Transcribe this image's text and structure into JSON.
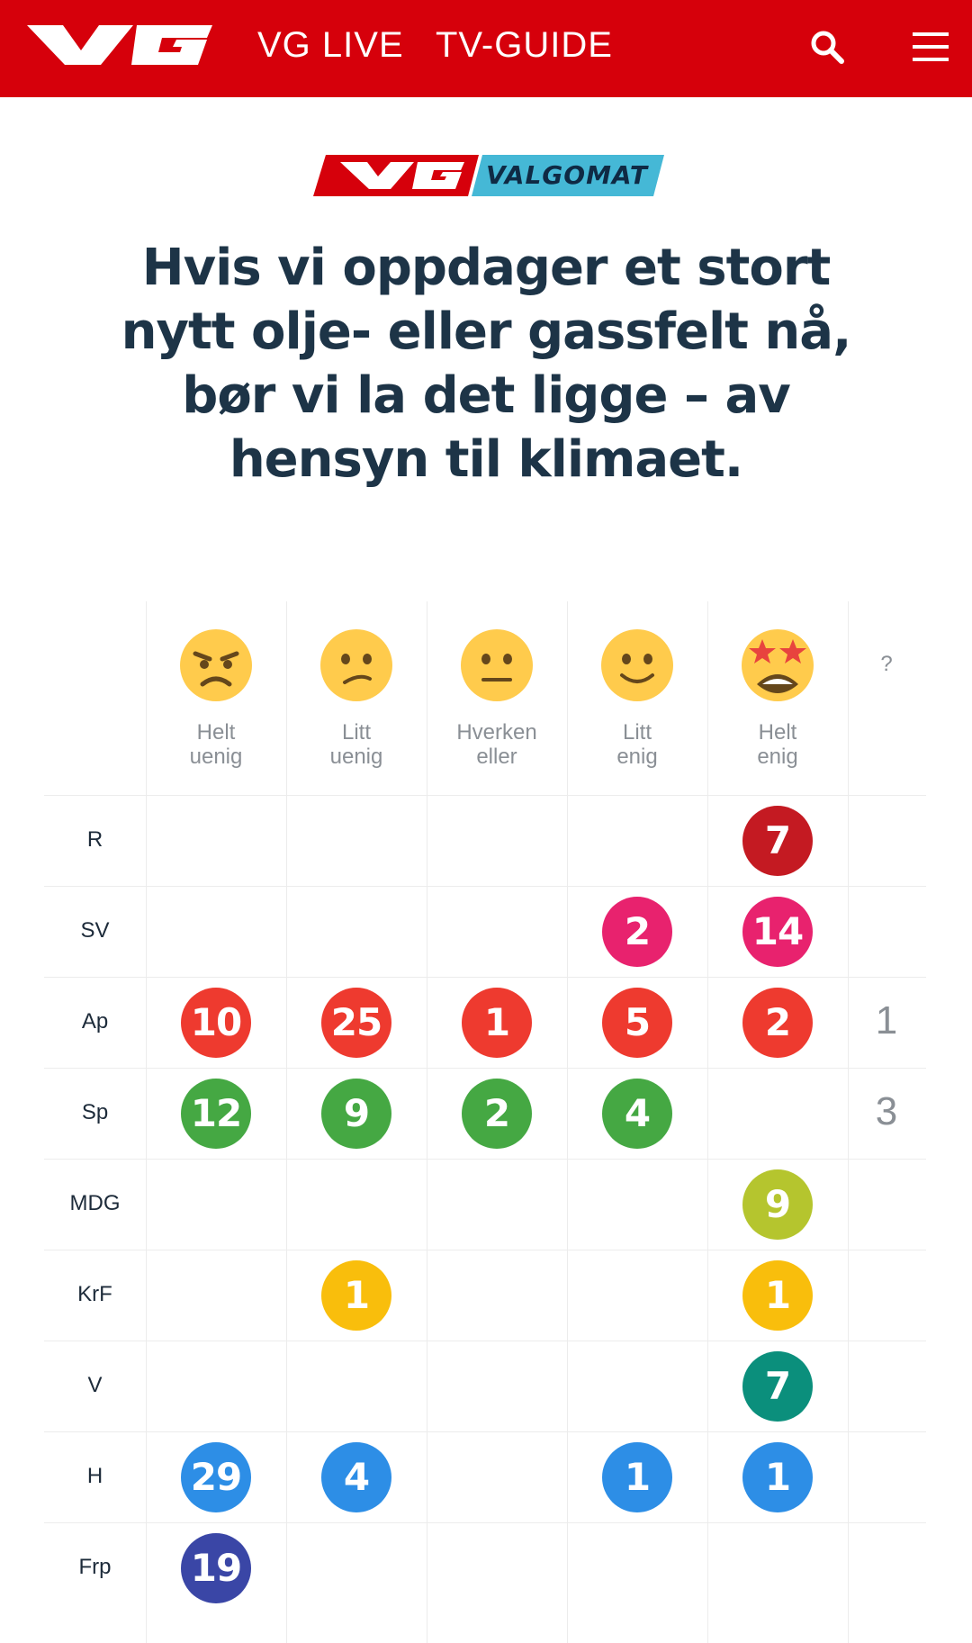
{
  "header": {
    "brand": "VG",
    "nav": [
      "VG LIVE",
      "TV-GUIDE"
    ],
    "search_icon": "search-icon",
    "menu_icon": "hamburger-menu-icon",
    "bg_color": "#d6000b"
  },
  "badge": {
    "brand": "VG",
    "label": "VALGOMAT"
  },
  "question": "Hvis vi oppdager et stort nytt olje- eller gassfelt nå, bør vi la det ligge – av hensyn til klimaet.",
  "columns": [
    {
      "emoji": "angry-face-icon",
      "label_1": "Helt",
      "label_2": "uenig"
    },
    {
      "emoji": "confused-face-icon",
      "label_1": "Litt",
      "label_2": "uenig"
    },
    {
      "emoji": "neutral-face-icon",
      "label_1": "Hverken",
      "label_2": "eller"
    },
    {
      "emoji": "slight-smile-face-icon",
      "label_1": "Litt",
      "label_2": "enig"
    },
    {
      "emoji": "star-struck-face-icon",
      "label_1": "Helt",
      "label_2": "enig"
    }
  ],
  "unknown_label": "?",
  "rows": [
    {
      "party": "R",
      "color": "#c41a22",
      "values": [
        null,
        null,
        null,
        null,
        7
      ],
      "unknown": null
    },
    {
      "party": "SV",
      "color": "#e8226e",
      "values": [
        null,
        null,
        null,
        2,
        14
      ],
      "unknown": null
    },
    {
      "party": "Ap",
      "color": "#ee3a2f",
      "values": [
        10,
        25,
        1,
        5,
        2
      ],
      "unknown": 1
    },
    {
      "party": "Sp",
      "color": "#45a843",
      "values": [
        12,
        9,
        2,
        4,
        null
      ],
      "unknown": 3
    },
    {
      "party": "MDG",
      "color": "#b5c52e",
      "values": [
        null,
        null,
        null,
        null,
        9
      ],
      "unknown": null
    },
    {
      "party": "KrF",
      "color": "#f9be0c",
      "values": [
        null,
        1,
        null,
        null,
        1
      ],
      "unknown": null
    },
    {
      "party": "V",
      "color": "#0b8f7c",
      "values": [
        null,
        null,
        null,
        null,
        7
      ],
      "unknown": null
    },
    {
      "party": "H",
      "color": "#2d8ee6",
      "values": [
        29,
        4,
        null,
        1,
        1
      ],
      "unknown": null
    },
    {
      "party": "Frp",
      "color": "#3a46a6",
      "values": [
        19,
        null,
        null,
        null,
        null
      ],
      "unknown": null
    }
  ]
}
